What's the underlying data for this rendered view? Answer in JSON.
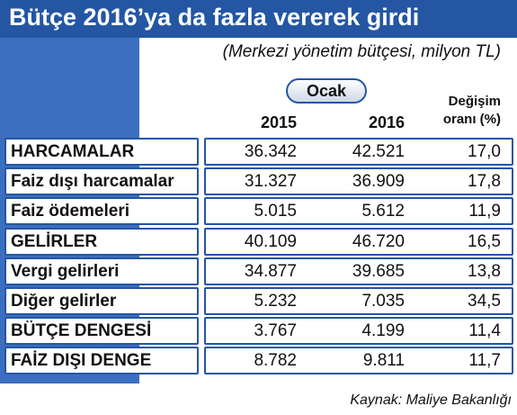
{
  "header": {
    "title": "Bütçe 2016’ya da fazla vererek girdi",
    "subtitle": "(Merkezi yönetim bütçesi, milyon TL)"
  },
  "table": {
    "group": "Ocak",
    "columns": [
      "2015",
      "2016",
      [
        "Değişim",
        "oranı (%)"
      ]
    ],
    "rows": [
      [
        "HARCAMALAR",
        "36.342",
        "42.521",
        "17,0"
      ],
      [
        "Faiz dışı harcamalar",
        "31.327",
        "36.909",
        "17,8"
      ],
      [
        "Faiz ödemeleri",
        "5.015",
        "5.612",
        "11,9"
      ],
      [
        "GELİRLER",
        "40.109",
        "46.720",
        "16,5"
      ],
      [
        "Vergi gelirleri",
        "34.877",
        "39.685",
        "13,8"
      ],
      [
        "Diğer gelirler",
        "5.232",
        "7.035",
        "34,5"
      ],
      [
        "BÜTÇE DENGESİ",
        "3.767",
        "4.199",
        "11,4"
      ],
      [
        "FAİZ DIŞI DENGE",
        "8.782",
        "9.811",
        "11,7"
      ]
    ]
  },
  "source": "Kaynak: Maliye Bakanlığı"
}
